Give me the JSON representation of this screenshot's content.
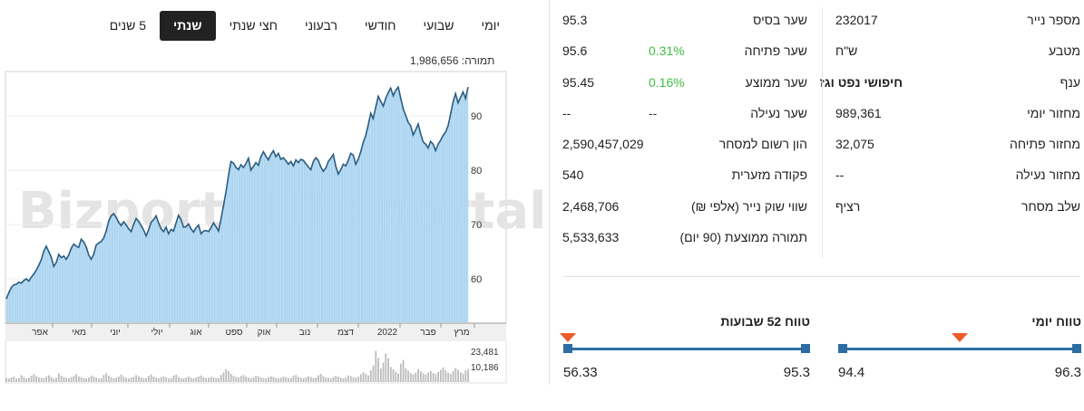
{
  "tabs": [
    {
      "label": "יומי",
      "active": false
    },
    {
      "label": "שבועי",
      "active": false
    },
    {
      "label": "חודשי",
      "active": false
    },
    {
      "label": "רבעוני",
      "active": false
    },
    {
      "label": "חצי שנתי",
      "active": false
    },
    {
      "label": "שנתי",
      "active": true
    },
    {
      "label": "5 שנים",
      "active": false
    }
  ],
  "volume": {
    "label": "תמורה:",
    "value": "1,986,656"
  },
  "info_right": [
    {
      "label": "מספר נייר",
      "value": "232017"
    },
    {
      "label": "מטבע",
      "value": "ש\"ח"
    },
    {
      "label": "ענף",
      "value": "חיפושי נפט וגז",
      "bold": true
    },
    {
      "label": "מחזור יומי",
      "value": "989,361"
    },
    {
      "label": "מחזור פתיחה",
      "value": "32,075"
    },
    {
      "label": "מחזור נעילה",
      "value": "--"
    },
    {
      "label": "שלב מסחר",
      "value": "רציף"
    }
  ],
  "info_left": [
    {
      "label": "שער בסיס",
      "value": "95.3",
      "change": ""
    },
    {
      "label": "שער פתיחה",
      "value": "95.6",
      "change": "0.31%"
    },
    {
      "label": "שער ממוצע",
      "value": "95.45",
      "change": "0.16%"
    },
    {
      "label": "שער נעילה",
      "value": "--",
      "change": "--"
    },
    {
      "label": "הון רשום למסחר",
      "value": "2,590,457,029",
      "change": ""
    },
    {
      "label": "פקודה מזערית",
      "value": "540",
      "change": ""
    },
    {
      "label": "שווי שוק נייר (אלפי ₪)",
      "value": "2,468,706",
      "change": ""
    },
    {
      "label": "תמורה ממוצעת (90 יום)",
      "value": "5,533,633",
      "change": ""
    }
  ],
  "range_day": {
    "title": "טווח יומי",
    "low": "94.4",
    "high": "96.3",
    "position": 0.5
  },
  "range_52": {
    "title": "טווח 52 שבועות",
    "low": "56.33",
    "high": "95.3",
    "position": 1.0
  },
  "colors": {
    "accent": "#2e6da4",
    "marker": "#ee5b2a",
    "positive": "#3fbf3f",
    "area": "#a9d3ef",
    "line": "#2b5d80"
  },
  "watermark": "Bizportal",
  "chart_data": {
    "type": "area",
    "x_ticks": [
      "אפר",
      "מאי",
      "יוני",
      "יולי",
      "אוג",
      "ספט",
      "אוק",
      "נוב",
      "דצמ",
      "2022",
      "פבר",
      "מרץ"
    ],
    "y_ticks": [
      60,
      70,
      80,
      90
    ],
    "ylim": [
      52,
      98
    ],
    "values": [
      56.3,
      57.5,
      58.4,
      58.9,
      59.0,
      59.4,
      59.2,
      59.7,
      60.0,
      59.6,
      60.3,
      60.9,
      61.6,
      62.5,
      63.5,
      65.1,
      66.0,
      65.0,
      64.0,
      62.3,
      63.0,
      64.5,
      63.9,
      64.2,
      63.6,
      64.4,
      65.6,
      66.4,
      66.0,
      65.8,
      67.3,
      66.8,
      65.9,
      64.4,
      63.6,
      64.5,
      66.2,
      66.6,
      66.9,
      67.5,
      68.8,
      70.6,
      71.6,
      72.0,
      71.3,
      70.4,
      69.8,
      70.5,
      69.9,
      69.2,
      68.7,
      70.0,
      71.1,
      70.6,
      69.8,
      69.0,
      67.9,
      69.0,
      70.4,
      70.9,
      71.6,
      70.3,
      69.2,
      68.7,
      69.5,
      68.3,
      69.1,
      68.8,
      70.3,
      71.7,
      70.9,
      69.5,
      69.6,
      70.1,
      69.2,
      68.6,
      69.4,
      69.9,
      68.3,
      68.8,
      68.9,
      68.7,
      69.4,
      70.3,
      69.6,
      68.8,
      71.0,
      73.5,
      76.0,
      79.0,
      81.6,
      81.3,
      80.5,
      80.1,
      81.0,
      80.5,
      81.2,
      82.2,
      80.0,
      80.7,
      81.4,
      80.9,
      82.5,
      83.4,
      82.6,
      81.9,
      82.9,
      83.6,
      82.5,
      83.1,
      82.0,
      82.3,
      81.7,
      81.1,
      81.6,
      80.8,
      81.9,
      81.4,
      82.0,
      81.8,
      81.2,
      80.6,
      80.1,
      81.6,
      82.3,
      81.8,
      80.6,
      79.8,
      80.4,
      81.6,
      82.2,
      82.9,
      80.7,
      79.3,
      80.1,
      81.1,
      80.8,
      81.8,
      83.1,
      82.8,
      81.1,
      82.0,
      83.4,
      85.1,
      86.4,
      88.3,
      90.5,
      89.5,
      91.6,
      93.6,
      92.7,
      91.8,
      93.2,
      94.3,
      95.1,
      93.7,
      94.7,
      95.3,
      93.3,
      91.3,
      90.1,
      88.8,
      88.2,
      86.5,
      87.4,
      88.5,
      86.7,
      85.2,
      84.8,
      84.1,
      85.3,
      84.8,
      83.6,
      84.8,
      85.5,
      86.4,
      87.0,
      88.2,
      90.3,
      92.6,
      94.1,
      92.4,
      93.4,
      94.4,
      93.2,
      95.3
    ],
    "volume_ticks": [
      "23,481",
      "10,186"
    ],
    "volume_max": 30000,
    "volume": [
      3200,
      2800,
      3500,
      4100,
      2600,
      3000,
      5200,
      3900,
      2700,
      3300,
      4800,
      6100,
      4500,
      3600,
      3100,
      2900,
      4200,
      5100,
      3800,
      2500,
      3400,
      6600,
      4700,
      3900,
      3200,
      2700,
      3800,
      4500,
      5900,
      4300,
      3600,
      3000,
      2800,
      3500,
      4900,
      4100,
      3300,
      2600,
      3100,
      5300,
      6700,
      4800,
      3700,
      2900,
      3400,
      4200,
      5600,
      4000,
      3100,
      2700,
      3300,
      3900,
      5200,
      4400,
      3500,
      2800,
      3000,
      4600,
      5800,
      4200,
      3300,
      2900,
      3700,
      4400,
      3600,
      2700,
      3100,
      4800,
      5500,
      3900,
      3000,
      2600,
      3400,
      4100,
      3200,
      2800,
      3600,
      4300,
      5000,
      3700,
      2900,
      3300,
      4000,
      3500,
      2700,
      3100,
      5400,
      7200,
      9800,
      8300,
      6100,
      4700,
      3900,
      3400,
      4500,
      5200,
      4100,
      3300,
      2900,
      3600,
      4800,
      4200,
      3500,
      3000,
      2800,
      3700,
      4400,
      3900,
      3100,
      2700,
      3300,
      4100,
      3600,
      2900,
      3200,
      4600,
      5300,
      4000,
      3300,
      2800,
      3500,
      4300,
      3700,
      3000,
      3400,
      5100,
      6200,
      4500,
      3600,
      3100,
      2900,
      3800,
      4700,
      4000,
      3300,
      2800,
      3600,
      5000,
      4400,
      3700,
      3200,
      3900,
      5800,
      7400,
      6300,
      5000,
      8800,
      12400,
      23481,
      18200,
      10200,
      14600,
      21500,
      17900,
      11300,
      9600,
      7800,
      6400,
      13800,
      16700,
      10186,
      8500,
      6900,
      5800,
      7300,
      9900,
      8200,
      6500,
      5600,
      7100,
      8400,
      6800,
      5900,
      7600,
      9200,
      11000,
      8700,
      7000,
      6100,
      8300,
      10600,
      9100,
      7400,
      6300,
      8900,
      9800
    ]
  }
}
